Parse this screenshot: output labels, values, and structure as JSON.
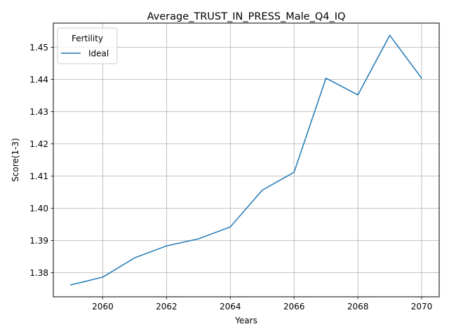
{
  "chart_data": {
    "type": "line",
    "title": "Average_TRUST_IN_PRESS_Male_Q4_IQ",
    "xlabel": "Years",
    "ylabel": "Score(1-3)",
    "x": [
      2059,
      2060,
      2061,
      2062,
      2063,
      2064,
      2065,
      2066,
      2067,
      2068,
      2069,
      2070
    ],
    "series": [
      {
        "name": "Ideal",
        "color": "#1f77b4",
        "values": [
          1.3762,
          1.3786,
          1.3846,
          1.3883,
          1.3905,
          1.3942,
          1.4056,
          1.4112,
          1.4404,
          1.4352,
          1.4537,
          1.4404
        ]
      }
    ],
    "xlim": [
      2058.45,
      2070.55
    ],
    "ylim": [
      1.3725,
      1.4575
    ],
    "x_ticks": [
      2060,
      2062,
      2064,
      2066,
      2068,
      2070
    ],
    "x_tick_labels": [
      "2060",
      "2062",
      "2064",
      "2066",
      "2068",
      "2070"
    ],
    "y_ticks": [
      1.38,
      1.39,
      1.4,
      1.41,
      1.42,
      1.43,
      1.44,
      1.45
    ],
    "y_tick_labels": [
      "1.38",
      "1.39",
      "1.40",
      "1.41",
      "1.42",
      "1.43",
      "1.44",
      "1.45"
    ],
    "grid": true,
    "legend": {
      "title": "Fertility",
      "placement": "top-left"
    }
  }
}
